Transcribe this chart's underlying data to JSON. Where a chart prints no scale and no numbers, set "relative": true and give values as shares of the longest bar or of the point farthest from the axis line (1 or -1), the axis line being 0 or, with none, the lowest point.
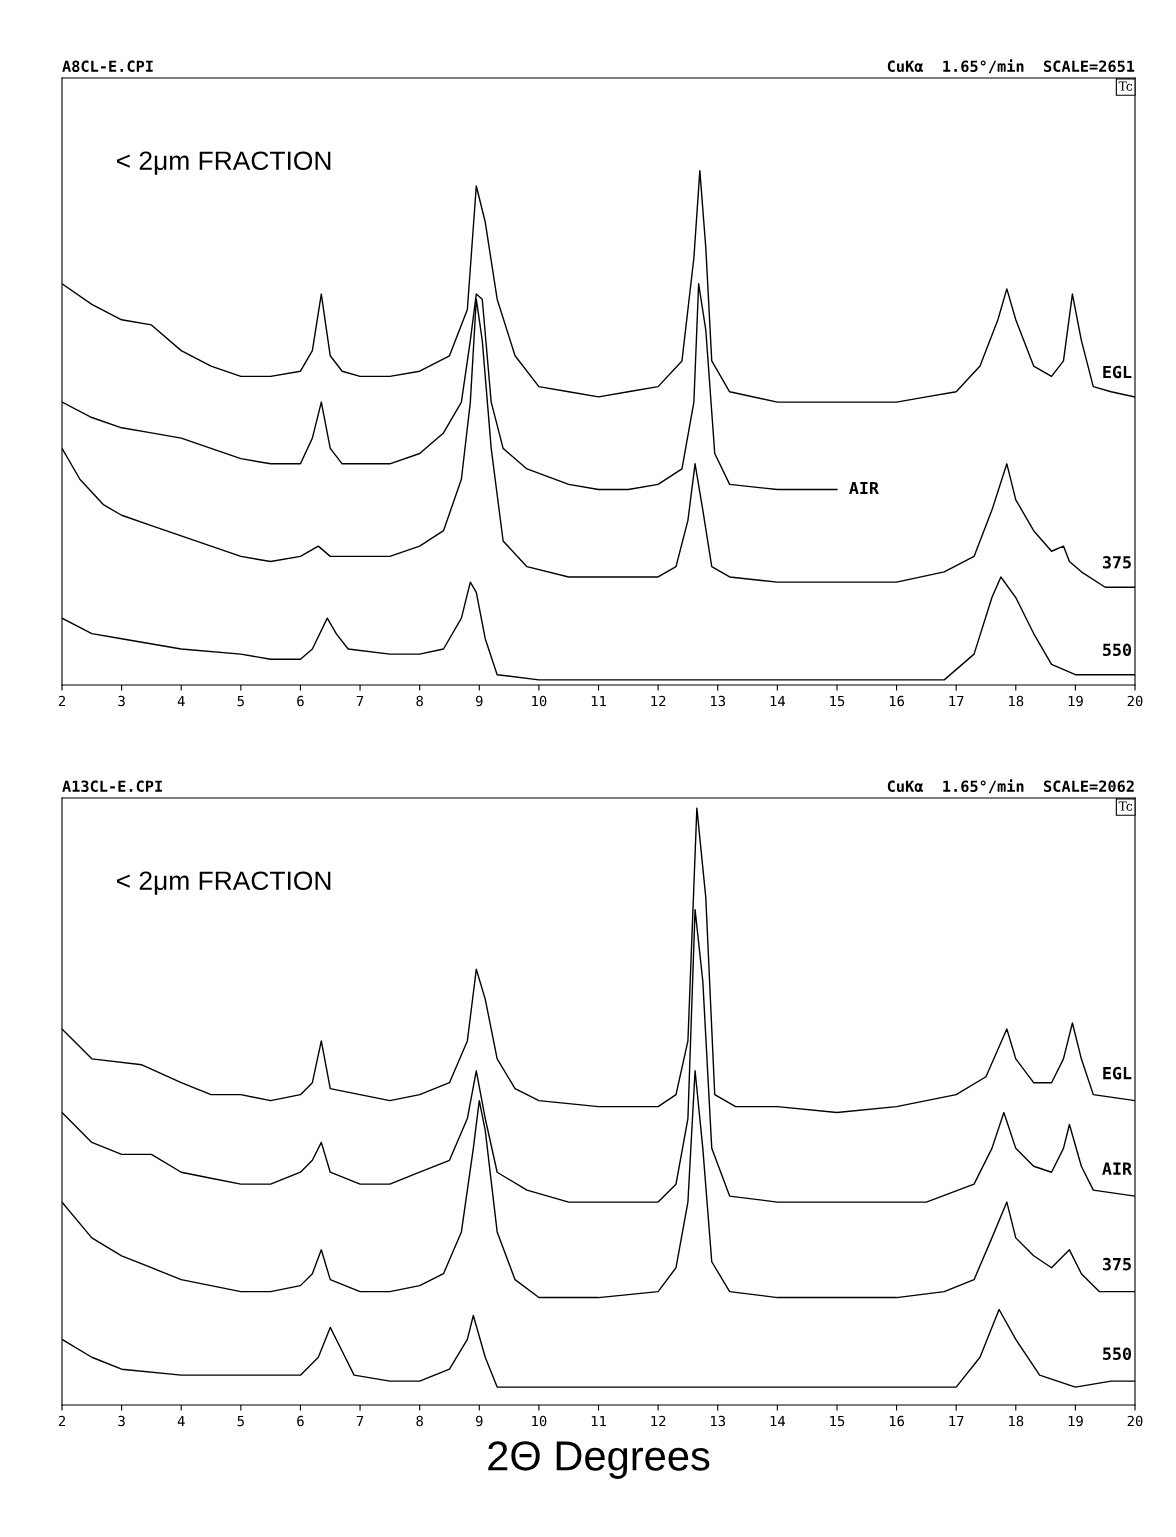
{
  "chart_data": [
    {
      "type": "line",
      "title": "A8CL-E.CPI",
      "subtitle": "CuKα  1.65°/min  SCALE=2651",
      "relative": true,
      "xlim": [
        2,
        20
      ],
      "xticks": [
        2,
        3,
        4,
        5,
        6,
        7,
        8,
        9,
        10,
        11,
        12,
        13,
        14,
        15,
        16,
        17,
        18,
        19,
        20
      ],
      "tick_labels": "x",
      "grid": false,
      "legend": false,
      "marker": "none",
      "line_style": "solid",
      "annotations": [
        "Tc",
        "< 2μm FRACTION"
      ],
      "series": [
        {
          "name": "EGL",
          "color": "#000000",
          "x": [
            2.0,
            2.5,
            3.0,
            3.5,
            4.0,
            4.5,
            5.0,
            5.5,
            6.0,
            6.2,
            6.35,
            6.5,
            6.7,
            7.0,
            7.5,
            8.0,
            8.5,
            8.8,
            8.95,
            9.1,
            9.3,
            9.6,
            10.0,
            10.5,
            11.0,
            11.5,
            12.0,
            12.4,
            12.6,
            12.7,
            12.8,
            12.9,
            13.2,
            14.0,
            15.0,
            16.0,
            16.5,
            17.0,
            17.4,
            17.7,
            17.85,
            18.0,
            18.3,
            18.6,
            18.8,
            18.95,
            19.1,
            19.3,
            19.6,
            20.0
          ],
          "values": [
            0.78,
            0.74,
            0.71,
            0.7,
            0.65,
            0.62,
            0.6,
            0.6,
            0.61,
            0.65,
            0.76,
            0.64,
            0.61,
            0.6,
            0.6,
            0.61,
            0.64,
            0.73,
            0.97,
            0.9,
            0.75,
            0.64,
            0.58,
            0.57,
            0.56,
            0.57,
            0.58,
            0.63,
            0.83,
            1.0,
            0.85,
            0.63,
            0.57,
            0.55,
            0.55,
            0.55,
            0.56,
            0.57,
            0.62,
            0.71,
            0.77,
            0.71,
            0.62,
            0.6,
            0.63,
            0.76,
            0.67,
            0.58,
            0.57,
            0.56
          ]
        },
        {
          "name": "AIR",
          "color": "#000000",
          "x": [
            2.0,
            2.5,
            3.0,
            3.5,
            4.0,
            4.5,
            5.0,
            5.5,
            6.0,
            6.2,
            6.35,
            6.5,
            6.7,
            7.0,
            7.5,
            8.0,
            8.4,
            8.7,
            8.85,
            8.95,
            9.05,
            9.2,
            9.4,
            9.8,
            10.5,
            11.0,
            11.5,
            12.0,
            12.4,
            12.6,
            12.68,
            12.8,
            12.95,
            13.2,
            14.0,
            15.0
          ],
          "values": [
            0.55,
            0.52,
            0.5,
            0.49,
            0.48,
            0.46,
            0.44,
            0.43,
            0.43,
            0.48,
            0.55,
            0.46,
            0.43,
            0.43,
            0.43,
            0.45,
            0.49,
            0.55,
            0.67,
            0.76,
            0.75,
            0.55,
            0.46,
            0.42,
            0.39,
            0.38,
            0.38,
            0.39,
            0.42,
            0.55,
            0.78,
            0.69,
            0.45,
            0.39,
            0.38,
            0.38
          ]
        },
        {
          "name": "375",
          "color": "#000000",
          "x": [
            2.0,
            2.3,
            2.7,
            3.0,
            3.5,
            4.0,
            4.5,
            5.0,
            5.5,
            6.0,
            6.3,
            6.5,
            7.0,
            7.5,
            8.0,
            8.4,
            8.7,
            8.85,
            8.95,
            9.05,
            9.2,
            9.4,
            9.8,
            10.5,
            11.5,
            12.0,
            12.3,
            12.5,
            12.62,
            12.75,
            12.9,
            13.2,
            14.0,
            15.0,
            16.0,
            16.8,
            17.3,
            17.6,
            17.85,
            18.0,
            18.3,
            18.6,
            18.8,
            18.9,
            19.1,
            19.5,
            20.0
          ],
          "values": [
            0.46,
            0.4,
            0.35,
            0.33,
            0.31,
            0.29,
            0.27,
            0.25,
            0.24,
            0.25,
            0.27,
            0.25,
            0.25,
            0.25,
            0.27,
            0.3,
            0.4,
            0.55,
            0.75,
            0.67,
            0.46,
            0.28,
            0.23,
            0.21,
            0.21,
            0.21,
            0.23,
            0.32,
            0.43,
            0.34,
            0.23,
            0.21,
            0.2,
            0.2,
            0.2,
            0.22,
            0.25,
            0.34,
            0.43,
            0.36,
            0.3,
            0.26,
            0.27,
            0.24,
            0.22,
            0.19,
            0.19
          ]
        },
        {
          "name": "550",
          "color": "#000000",
          "x": [
            2.0,
            2.5,
            3.0,
            4.0,
            5.0,
            5.5,
            6.0,
            6.2,
            6.45,
            6.6,
            6.8,
            7.5,
            8.0,
            8.4,
            8.7,
            8.85,
            8.95,
            9.1,
            9.3,
            10.0,
            12.0,
            14.0,
            16.0,
            16.8,
            17.3,
            17.6,
            17.75,
            18.0,
            18.3,
            18.6,
            19.0,
            20.0
          ],
          "values": [
            0.13,
            0.1,
            0.09,
            0.07,
            0.06,
            0.05,
            0.05,
            0.07,
            0.13,
            0.1,
            0.07,
            0.06,
            0.06,
            0.07,
            0.13,
            0.2,
            0.18,
            0.09,
            0.02,
            0.01,
            0.01,
            0.01,
            0.01,
            0.01,
            0.06,
            0.17,
            0.21,
            0.17,
            0.1,
            0.04,
            0.02,
            0.02
          ]
        }
      ]
    },
    {
      "type": "line",
      "title": "A13CL-E.CPI",
      "subtitle": "CuKα  1.65°/min  SCALE=2062",
      "xlabel": "2Θ Degrees",
      "relative": true,
      "xlim": [
        2,
        20
      ],
      "xticks": [
        2,
        3,
        4,
        5,
        6,
        7,
        8,
        9,
        10,
        11,
        12,
        13,
        14,
        15,
        16,
        17,
        18,
        19,
        20
      ],
      "tick_labels": "x",
      "grid": false,
      "legend": false,
      "marker": "none",
      "line_style": "solid",
      "annotations": [
        "Tc",
        "< 2μm FRACTION"
      ],
      "series": [
        {
          "name": "EGL",
          "color": "#000000",
          "x": [
            2.0,
            2.5,
            3.34,
            4.0,
            4.5,
            5.0,
            5.5,
            6.0,
            6.2,
            6.35,
            6.5,
            7.0,
            7.5,
            8.0,
            8.5,
            8.8,
            8.95,
            9.1,
            9.3,
            9.6,
            10.0,
            11.0,
            12.0,
            12.3,
            12.5,
            12.65,
            12.8,
            12.95,
            13.3,
            14.0,
            15.0,
            16.0,
            16.5,
            17.0,
            17.5,
            17.85,
            18.0,
            18.3,
            18.6,
            18.8,
            18.95,
            19.1,
            19.3,
            20.0
          ],
          "values": [
            0.63,
            0.58,
            0.57,
            0.54,
            0.52,
            0.52,
            0.51,
            0.52,
            0.54,
            0.61,
            0.53,
            0.52,
            0.51,
            0.52,
            0.54,
            0.61,
            0.73,
            0.68,
            0.58,
            0.53,
            0.51,
            0.5,
            0.5,
            0.52,
            0.61,
            1.0,
            0.85,
            0.52,
            0.5,
            0.5,
            0.49,
            0.5,
            0.51,
            0.52,
            0.55,
            0.63,
            0.58,
            0.54,
            0.54,
            0.58,
            0.64,
            0.58,
            0.52,
            0.51
          ]
        },
        {
          "name": "AIR",
          "color": "#000000",
          "x": [
            2.0,
            2.5,
            3.0,
            3.5,
            4.0,
            4.5,
            5.0,
            5.5,
            6.0,
            6.2,
            6.35,
            6.5,
            7.0,
            7.5,
            8.0,
            8.5,
            8.8,
            8.95,
            9.1,
            9.3,
            9.8,
            10.5,
            11.5,
            12.0,
            12.3,
            12.5,
            12.62,
            12.75,
            12.9,
            13.2,
            14.0,
            15.0,
            16.5,
            17.3,
            17.6,
            17.8,
            18.0,
            18.3,
            18.6,
            18.8,
            18.9,
            19.1,
            19.3,
            20.0
          ],
          "values": [
            0.49,
            0.44,
            0.42,
            0.42,
            0.39,
            0.38,
            0.37,
            0.37,
            0.39,
            0.41,
            0.44,
            0.39,
            0.37,
            0.37,
            0.39,
            0.41,
            0.48,
            0.56,
            0.48,
            0.39,
            0.36,
            0.34,
            0.34,
            0.34,
            0.37,
            0.48,
            0.83,
            0.71,
            0.43,
            0.35,
            0.34,
            0.34,
            0.34,
            0.37,
            0.43,
            0.49,
            0.43,
            0.4,
            0.39,
            0.43,
            0.47,
            0.4,
            0.36,
            0.35
          ]
        },
        {
          "name": "375",
          "color": "#000000",
          "x": [
            2.0,
            2.5,
            3.0,
            3.5,
            4.0,
            4.5,
            5.0,
            5.5,
            6.0,
            6.2,
            6.35,
            6.5,
            7.0,
            7.5,
            8.0,
            8.4,
            8.7,
            8.9,
            9.0,
            9.1,
            9.3,
            9.6,
            10.0,
            11.0,
            12.0,
            12.3,
            12.5,
            12.62,
            12.75,
            12.9,
            13.2,
            14.0,
            15.0,
            16.0,
            16.8,
            17.3,
            17.6,
            17.85,
            18.0,
            18.3,
            18.6,
            18.9,
            19.1,
            19.4,
            20.0
          ],
          "values": [
            0.34,
            0.28,
            0.25,
            0.23,
            0.21,
            0.2,
            0.19,
            0.19,
            0.2,
            0.22,
            0.26,
            0.21,
            0.19,
            0.19,
            0.2,
            0.22,
            0.29,
            0.43,
            0.51,
            0.46,
            0.29,
            0.21,
            0.18,
            0.18,
            0.19,
            0.23,
            0.34,
            0.56,
            0.43,
            0.24,
            0.19,
            0.18,
            0.18,
            0.18,
            0.19,
            0.21,
            0.28,
            0.34,
            0.28,
            0.25,
            0.23,
            0.26,
            0.22,
            0.19,
            0.19
          ]
        },
        {
          "name": "550",
          "color": "#000000",
          "x": [
            2.0,
            2.5,
            3.0,
            4.0,
            5.0,
            6.0,
            6.3,
            6.5,
            6.65,
            6.9,
            7.5,
            8.0,
            8.5,
            8.8,
            8.9,
            9.1,
            9.3,
            10.0,
            12.0,
            14.0,
            16.0,
            17.0,
            17.4,
            17.72,
            18.0,
            18.4,
            19.0,
            19.6,
            20.0
          ],
          "values": [
            0.11,
            0.08,
            0.06,
            0.05,
            0.05,
            0.05,
            0.08,
            0.13,
            0.1,
            0.05,
            0.04,
            0.04,
            0.06,
            0.11,
            0.15,
            0.08,
            0.03,
            0.03,
            0.03,
            0.03,
            0.03,
            0.03,
            0.08,
            0.16,
            0.11,
            0.05,
            0.03,
            0.04,
            0.04
          ]
        }
      ]
    }
  ]
}
